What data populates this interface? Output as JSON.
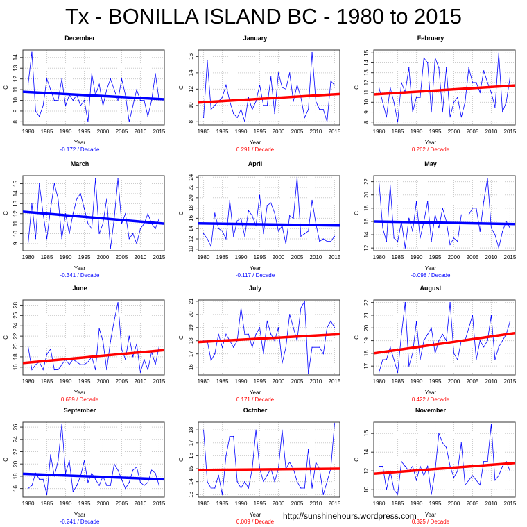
{
  "title": "Tx - BONILLA ISLAND BC - 1980 to 2015",
  "watermark": "http://sunshinehours.wordpress.com",
  "colors": {
    "series": "#0000ff",
    "trend_negative": "#0000ff",
    "trend_positive": "#ff0000",
    "grid": "#cccccc"
  },
  "chart_data": [
    {
      "type": "line",
      "title": "December",
      "xlabel": "Year",
      "ylabel": "C",
      "trend_label": "-0.172  / Decade",
      "trend_per_decade": -0.172,
      "xlim": [
        1978.6,
        2016.4
      ],
      "ylim": [
        7.7,
        14.7
      ],
      "xticks": [
        1980,
        1985,
        1990,
        1995,
        2000,
        2005,
        2010,
        2015
      ],
      "yticks": [
        8,
        9,
        10,
        11,
        12,
        13,
        14
      ],
      "grid": true,
      "trend": [
        10.8,
        10.1
      ],
      "values": [
        11.5,
        14.5,
        9,
        8.5,
        9.5,
        12,
        11,
        10,
        10,
        12,
        9.5,
        10.5,
        10,
        10.5,
        9.5,
        10,
        8,
        12.5,
        10.5,
        11.5,
        9.5,
        11,
        12,
        11,
        10,
        12,
        10.5,
        8,
        9.5,
        11,
        10,
        10,
        8.5,
        10,
        12.5,
        10
      ]
    },
    {
      "type": "line",
      "title": "January",
      "xlabel": "Year",
      "ylabel": "C",
      "trend_label": "0.291  / Decade",
      "trend_per_decade": 0.291,
      "xlim": [
        1978.6,
        2016.4
      ],
      "ylim": [
        7.6,
        16.8
      ],
      "xticks": [
        1980,
        1985,
        1990,
        1995,
        2000,
        2005,
        2010,
        2015
      ],
      "yticks": [
        8,
        10,
        12,
        14,
        16
      ],
      "grid": true,
      "trend": [
        10.35,
        11.4
      ],
      "values": [
        8.5,
        15.5,
        9.5,
        10,
        10.5,
        11,
        12.5,
        10.5,
        9,
        8.5,
        9.5,
        8,
        11,
        9.5,
        10.5,
        12.5,
        10,
        10,
        13.5,
        9,
        14,
        12.2,
        12,
        14,
        10.5,
        12.5,
        11,
        8.5,
        9.5,
        16.5,
        10.5,
        9.5,
        9.5,
        8,
        13,
        12.5
      ]
    },
    {
      "type": "line",
      "title": "February",
      "xlabel": "Year",
      "ylabel": "C",
      "trend_label": "0.262  / Decade",
      "trend_per_decade": 0.262,
      "xlim": [
        1978.6,
        2016.4
      ],
      "ylim": [
        7.7,
        15.3
      ],
      "xticks": [
        1980,
        1985,
        1990,
        1995,
        2000,
        2005,
        2010,
        2015
      ],
      "yticks": [
        8,
        9,
        10,
        11,
        12,
        13,
        14,
        15
      ],
      "grid": true,
      "trend": [
        10.8,
        11.7
      ],
      "values": [
        11.5,
        10,
        8.5,
        11.5,
        10,
        8,
        12,
        11,
        13.5,
        9,
        10.5,
        10.5,
        14.5,
        14,
        9,
        14.5,
        13.5,
        9,
        13.5,
        8.5,
        10,
        10.5,
        8.5,
        10,
        13.5,
        12,
        12,
        11,
        13.2,
        12,
        11,
        9.5,
        15,
        9,
        10,
        12.5
      ]
    },
    {
      "type": "line",
      "title": "March",
      "xlabel": "Year",
      "ylabel": "C",
      "trend_label": "-0.341  / Decade",
      "trend_per_decade": -0.341,
      "xlim": [
        1978.6,
        2016.4
      ],
      "ylim": [
        8.3,
        15.8
      ],
      "xticks": [
        1980,
        1985,
        1990,
        1995,
        2000,
        2005,
        2010,
        2015
      ],
      "yticks": [
        9,
        10,
        11,
        12,
        13,
        14,
        15
      ],
      "grid": true,
      "trend": [
        12.2,
        11.0
      ],
      "values": [
        9,
        13,
        9.5,
        15,
        12,
        9.5,
        12.5,
        15,
        13.5,
        9.5,
        12,
        10,
        12,
        13.5,
        14,
        12.5,
        11,
        10.5,
        15.5,
        10,
        11,
        13.5,
        8.5,
        11.5,
        15.5,
        11,
        12,
        9.5,
        10,
        9,
        10.5,
        11,
        12,
        11,
        10.5,
        11.5
      ]
    },
    {
      "type": "line",
      "title": "April",
      "xlabel": "Year",
      "ylabel": "C",
      "trend_label": "-0.117  / Decade",
      "trend_per_decade": -0.117,
      "xlim": [
        1978.6,
        2016.4
      ],
      "ylim": [
        9.7,
        24.3
      ],
      "xticks": [
        1980,
        1985,
        1990,
        1995,
        2000,
        2005,
        2010,
        2015
      ],
      "yticks": [
        10,
        12,
        14,
        16,
        18,
        20,
        22,
        24
      ],
      "grid": true,
      "trend": [
        15.0,
        14.6
      ],
      "values": [
        13,
        12,
        10.5,
        17,
        14,
        13.5,
        12,
        19.5,
        12.5,
        15.5,
        16,
        12.5,
        17.5,
        16.5,
        14.5,
        20.5,
        13,
        18.5,
        19,
        17,
        13.5,
        14.5,
        11,
        16.5,
        16,
        24,
        12.5,
        13,
        13.5,
        19.5,
        15,
        11.5,
        12,
        11.5,
        11.5,
        12.5
      ]
    },
    {
      "type": "line",
      "title": "May",
      "xlabel": "Year",
      "ylabel": "C",
      "trend_label": "-0.098  / Decade",
      "trend_per_decade": -0.098,
      "xlim": [
        1978.6,
        2016.4
      ],
      "ylim": [
        11.6,
        22.9
      ],
      "xticks": [
        1980,
        1985,
        1990,
        1995,
        2000,
        2005,
        2010,
        2015
      ],
      "yticks": [
        12,
        14,
        16,
        18,
        20,
        22
      ],
      "grid": true,
      "trend": [
        16.0,
        15.6
      ],
      "values": [
        22,
        15,
        13,
        21.5,
        13.5,
        13,
        16,
        12,
        16.5,
        14.5,
        19,
        13.5,
        16,
        19,
        13,
        17,
        15,
        18,
        16,
        12.5,
        13.5,
        13,
        17,
        17,
        17,
        18,
        18,
        14.5,
        19,
        22.5,
        15,
        14,
        12,
        14.5,
        16,
        15
      ]
    },
    {
      "type": "line",
      "title": "June",
      "xlabel": "Year",
      "ylabel": "C",
      "trend_label": "0.659  / Decade",
      "trend_per_decade": 0.659,
      "xlim": [
        1978.6,
        2016.4
      ],
      "ylim": [
        14.5,
        29
      ],
      "xticks": [
        1980,
        1985,
        1990,
        1995,
        2000,
        2005,
        2010,
        2015
      ],
      "yticks": [
        16,
        18,
        20,
        22,
        24,
        26,
        28
      ],
      "grid": true,
      "trend": [
        16.8,
        19.3
      ],
      "values": [
        20,
        15.5,
        16.5,
        17,
        15.5,
        18.5,
        19.5,
        15.5,
        15.5,
        16.5,
        17.5,
        16.5,
        17.5,
        17,
        16.5,
        16.5,
        17,
        18,
        15.5,
        23.5,
        21,
        15.5,
        21,
        25,
        28.5,
        19.5,
        17.5,
        22,
        18,
        20.5,
        15,
        17.5,
        15.5,
        19,
        16.5,
        20
      ]
    },
    {
      "type": "line",
      "title": "July",
      "xlabel": "Year",
      "ylabel": "C",
      "trend_label": "0.171  / Decade",
      "trend_per_decade": 0.171,
      "xlim": [
        1978.6,
        2016.4
      ],
      "ylim": [
        15.4,
        21.1
      ],
      "xticks": [
        1980,
        1985,
        1990,
        1995,
        2000,
        2005,
        2010,
        2015
      ],
      "yticks": [
        16,
        17,
        18,
        19,
        20,
        21
      ],
      "grid": true,
      "trend": [
        17.9,
        18.5
      ],
      "values": [
        18,
        18,
        16.5,
        17,
        18.5,
        17.5,
        18.5,
        18,
        17.5,
        18,
        20.5,
        18.5,
        18.5,
        17.5,
        18.5,
        19,
        17,
        19.5,
        18.5,
        18,
        19,
        16.3,
        17.5,
        20,
        19,
        18,
        20.5,
        21,
        15.5,
        17.5,
        17.5,
        17.5,
        17,
        19,
        19.5,
        19
      ]
    },
    {
      "type": "line",
      "title": "August",
      "xlabel": "Year",
      "ylabel": "C",
      "trend_label": "0.422  / Decade",
      "trend_per_decade": 0.422,
      "xlim": [
        1978.6,
        2016.4
      ],
      "ylim": [
        16.3,
        22.2
      ],
      "xticks": [
        1980,
        1985,
        1990,
        1995,
        2000,
        2005,
        2010,
        2015
      ],
      "yticks": [
        17,
        18,
        19,
        20,
        21,
        22
      ],
      "grid": true,
      "trend": [
        18.0,
        19.6
      ],
      "values": [
        16.5,
        17.5,
        17.5,
        18.5,
        17.5,
        16.5,
        19.5,
        22,
        17,
        18,
        20.5,
        17.5,
        19,
        19.5,
        20,
        18,
        19,
        19.5,
        19,
        22,
        18,
        17.5,
        19,
        19,
        20,
        21,
        17.5,
        19,
        18.5,
        19,
        21,
        17.5,
        18.5,
        19,
        19.5,
        20.5
      ]
    },
    {
      "type": "line",
      "title": "September",
      "xlabel": "Year",
      "ylabel": "C",
      "trend_label": "-0.241  / Decade",
      "trend_per_decade": -0.241,
      "xlim": [
        1978.6,
        2016.4
      ],
      "ylim": [
        14.6,
        26.8
      ],
      "xticks": [
        1980,
        1985,
        1990,
        1995,
        2000,
        2005,
        2010,
        2015
      ],
      "yticks": [
        16,
        18,
        20,
        22,
        24,
        26
      ],
      "grid": true,
      "trend": [
        18.4,
        17.5
      ],
      "values": [
        16,
        16.5,
        18.5,
        17.5,
        17.5,
        15,
        21.5,
        18,
        20.5,
        26.5,
        18.5,
        20.5,
        15.5,
        16.5,
        18,
        20.5,
        17,
        18.5,
        17.5,
        16.5,
        18,
        16.5,
        16.5,
        20,
        19,
        17.5,
        16,
        17,
        19,
        19.5,
        17,
        16.5,
        17,
        19,
        18.5,
        16.5
      ]
    },
    {
      "type": "line",
      "title": "October",
      "xlabel": "Year",
      "ylabel": "C",
      "trend_label": "0.009  / Decade",
      "trend_per_decade": 0.009,
      "xlim": [
        1978.6,
        2016.4
      ],
      "ylim": [
        12.8,
        18.6
      ],
      "xticks": [
        1980,
        1985,
        1990,
        1995,
        2000,
        2005,
        2010,
        2015
      ],
      "yticks": [
        13,
        14,
        15,
        16,
        17,
        18
      ],
      "grid": true,
      "trend": [
        14.9,
        15.0
      ],
      "values": [
        18,
        14,
        13.5,
        13.5,
        14.5,
        13,
        16,
        17.5,
        17.5,
        14,
        13.5,
        14,
        13.5,
        15,
        18,
        15,
        14,
        14.5,
        15,
        14,
        15,
        18,
        15,
        15.5,
        15,
        14,
        13.5,
        13.5,
        16.5,
        13.5,
        15.5,
        15,
        13,
        14,
        15,
        18.5
      ]
    },
    {
      "type": "line",
      "title": "November",
      "xlabel": "Year",
      "ylabel": "C",
      "trend_label": "0.325  / Decade",
      "trend_per_decade": 0.325,
      "xlim": [
        1978.6,
        2016.4
      ],
      "ylim": [
        9.2,
        17.2
      ],
      "xticks": [
        1980,
        1985,
        1990,
        1995,
        2000,
        2005,
        2010,
        2015
      ],
      "yticks": [
        10,
        12,
        14,
        16
      ],
      "grid": true,
      "trend": [
        11.7,
        12.85
      ],
      "values": [
        12.5,
        12.5,
        10,
        12,
        10,
        9.5,
        13,
        12.5,
        12,
        12.5,
        11,
        12.5,
        11.5,
        12.5,
        9.5,
        12,
        16,
        15,
        14.5,
        12.5,
        11.3,
        12,
        15,
        10.5,
        11,
        11.5,
        11,
        10.5,
        13,
        13,
        17,
        11,
        11.5,
        12.5,
        13,
        12
      ]
    }
  ]
}
